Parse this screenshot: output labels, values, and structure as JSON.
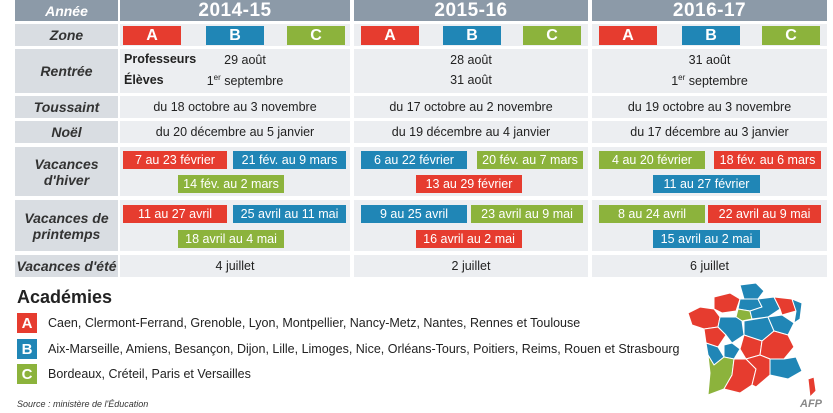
{
  "header": {
    "annee_label": "Année",
    "years": [
      "2014-15",
      "2015-16",
      "2016-17"
    ]
  },
  "rows": {
    "zone": "Zone",
    "rentree": "Rentrée",
    "toussaint": "Toussaint",
    "noel": "Noël",
    "hiver": "Vacances d'hiver",
    "printemps": "Vacances de printemps",
    "ete": "Vacances d'été"
  },
  "zones": [
    "A",
    "B",
    "C"
  ],
  "rentree": {
    "professeurs_label": "Professeurs",
    "eleves_label": "Élèves",
    "y1": {
      "professeurs": "29 août",
      "eleves_pre": "1",
      "eleves_sup": "er",
      "eleves_post": " septembre"
    },
    "y2": {
      "professeurs": "28 août",
      "eleves": "31 août"
    },
    "y3": {
      "professeurs": "31 août",
      "eleves_pre": "1",
      "eleves_sup": "er",
      "eleves_post": " septembre"
    }
  },
  "toussaint": [
    "du 18 octobre au 3 novembre",
    "du 17 octobre au 2 novembre",
    "du 19 octobre au 3 novembre"
  ],
  "noel": [
    "du 20 décembre au 5 janvier",
    "du 19 décembre au 4 janvier",
    "du 17 décembre au 3 janvier"
  ],
  "hiver": {
    "y1": {
      "a": "7 au 23 février",
      "b": "21 fév. au 9 mars",
      "c": "14 fév. au 2 mars"
    },
    "y2": {
      "b": "6 au 22 février",
      "c": "20 fév. au 7 mars",
      "a": "13 au 29 février"
    },
    "y3": {
      "c": "4 au 20 février",
      "a": "18 fév. au 6 mars",
      "b": "11 au 27 février"
    }
  },
  "printemps": {
    "y1": {
      "a": "11 au 27 avril",
      "b": "25 avril au 11 mai",
      "c": "18 avril au 4 mai"
    },
    "y2": {
      "b": "9 au 25 avril",
      "c": "23 avril au 9 mai",
      "a": "16 avril au 2 mai"
    },
    "y3": {
      "c": "8 au 24 avril",
      "a": "22 avril au 9 mai",
      "b": "15 avril au 2 mai"
    }
  },
  "ete": [
    "4 juillet",
    "2 juillet",
    "6 juillet"
  ],
  "academies": {
    "title": "Académies",
    "a": "Caen, Clermont-Ferrand, Grenoble, Lyon, Montpellier, Nancy-Metz, Nantes, Rennes et Toulouse",
    "b": "Aix-Marseille, Amiens, Besançon, Dijon, Lille, Limoges, Nice, Orléans-Tours, Poitiers, Reims, Rouen et Strasbourg",
    "c": "Bordeaux, Créteil, Paris et Versailles"
  },
  "source": "Source : ministère de l'Éducation",
  "credit": "AFP",
  "colors": {
    "a": "#e63c2f",
    "b": "#2086b6",
    "c": "#8cb33c",
    "header": "#8c9aa8"
  }
}
